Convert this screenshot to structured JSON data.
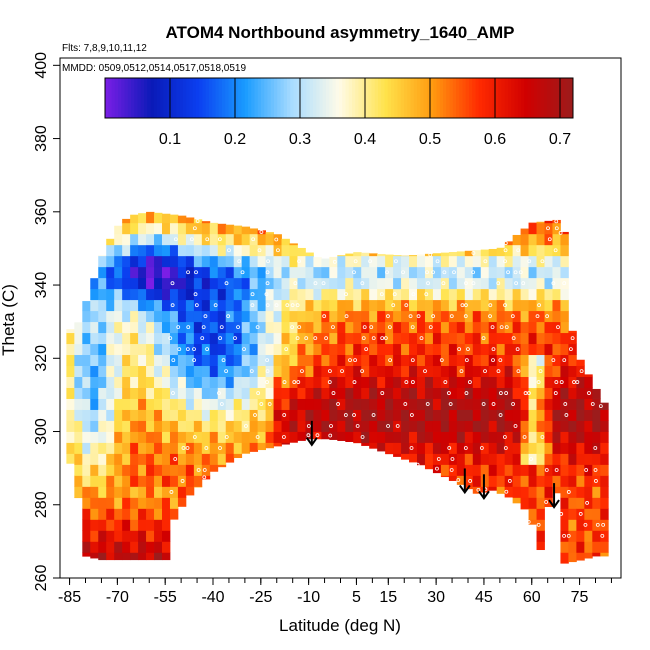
{
  "chart_data": {
    "type": "heatmap",
    "title": "ATOM4 Northbound asymmetry_1640_AMP",
    "subtitle_flights": "Flts: 7,8,9,10,11,12",
    "subtitle_dates": "MMDD: 0509,0512,0514,0517,0518,0519",
    "xlabel": "Latitude (deg N)",
    "ylabel": "Theta (C)",
    "xlim": [
      -88,
      88
    ],
    "ylim": [
      260,
      402
    ],
    "x_ticks": [
      -85,
      -70,
      -55,
      -40,
      -25,
      -10,
      5,
      15,
      30,
      45,
      60,
      75
    ],
    "y_ticks": [
      260,
      280,
      300,
      320,
      340,
      360,
      380,
      400
    ],
    "colorbar": {
      "range": [
        0,
        0.72
      ],
      "ticks": [
        0.1,
        0.2,
        0.3,
        0.4,
        0.5,
        0.6,
        0.7
      ],
      "colors": [
        "#7b1ee6",
        "#0a1ab8",
        "#0b3ff0",
        "#1a9cff",
        "#a9dcff",
        "#fffbe8",
        "#ffe24a",
        "#ff9a10",
        "#ff2a00",
        "#d00000",
        "#9c1c1c"
      ]
    },
    "arrows_latitude": [
      -9,
      39,
      45,
      67
    ],
    "grid": false,
    "legend": "top"
  }
}
